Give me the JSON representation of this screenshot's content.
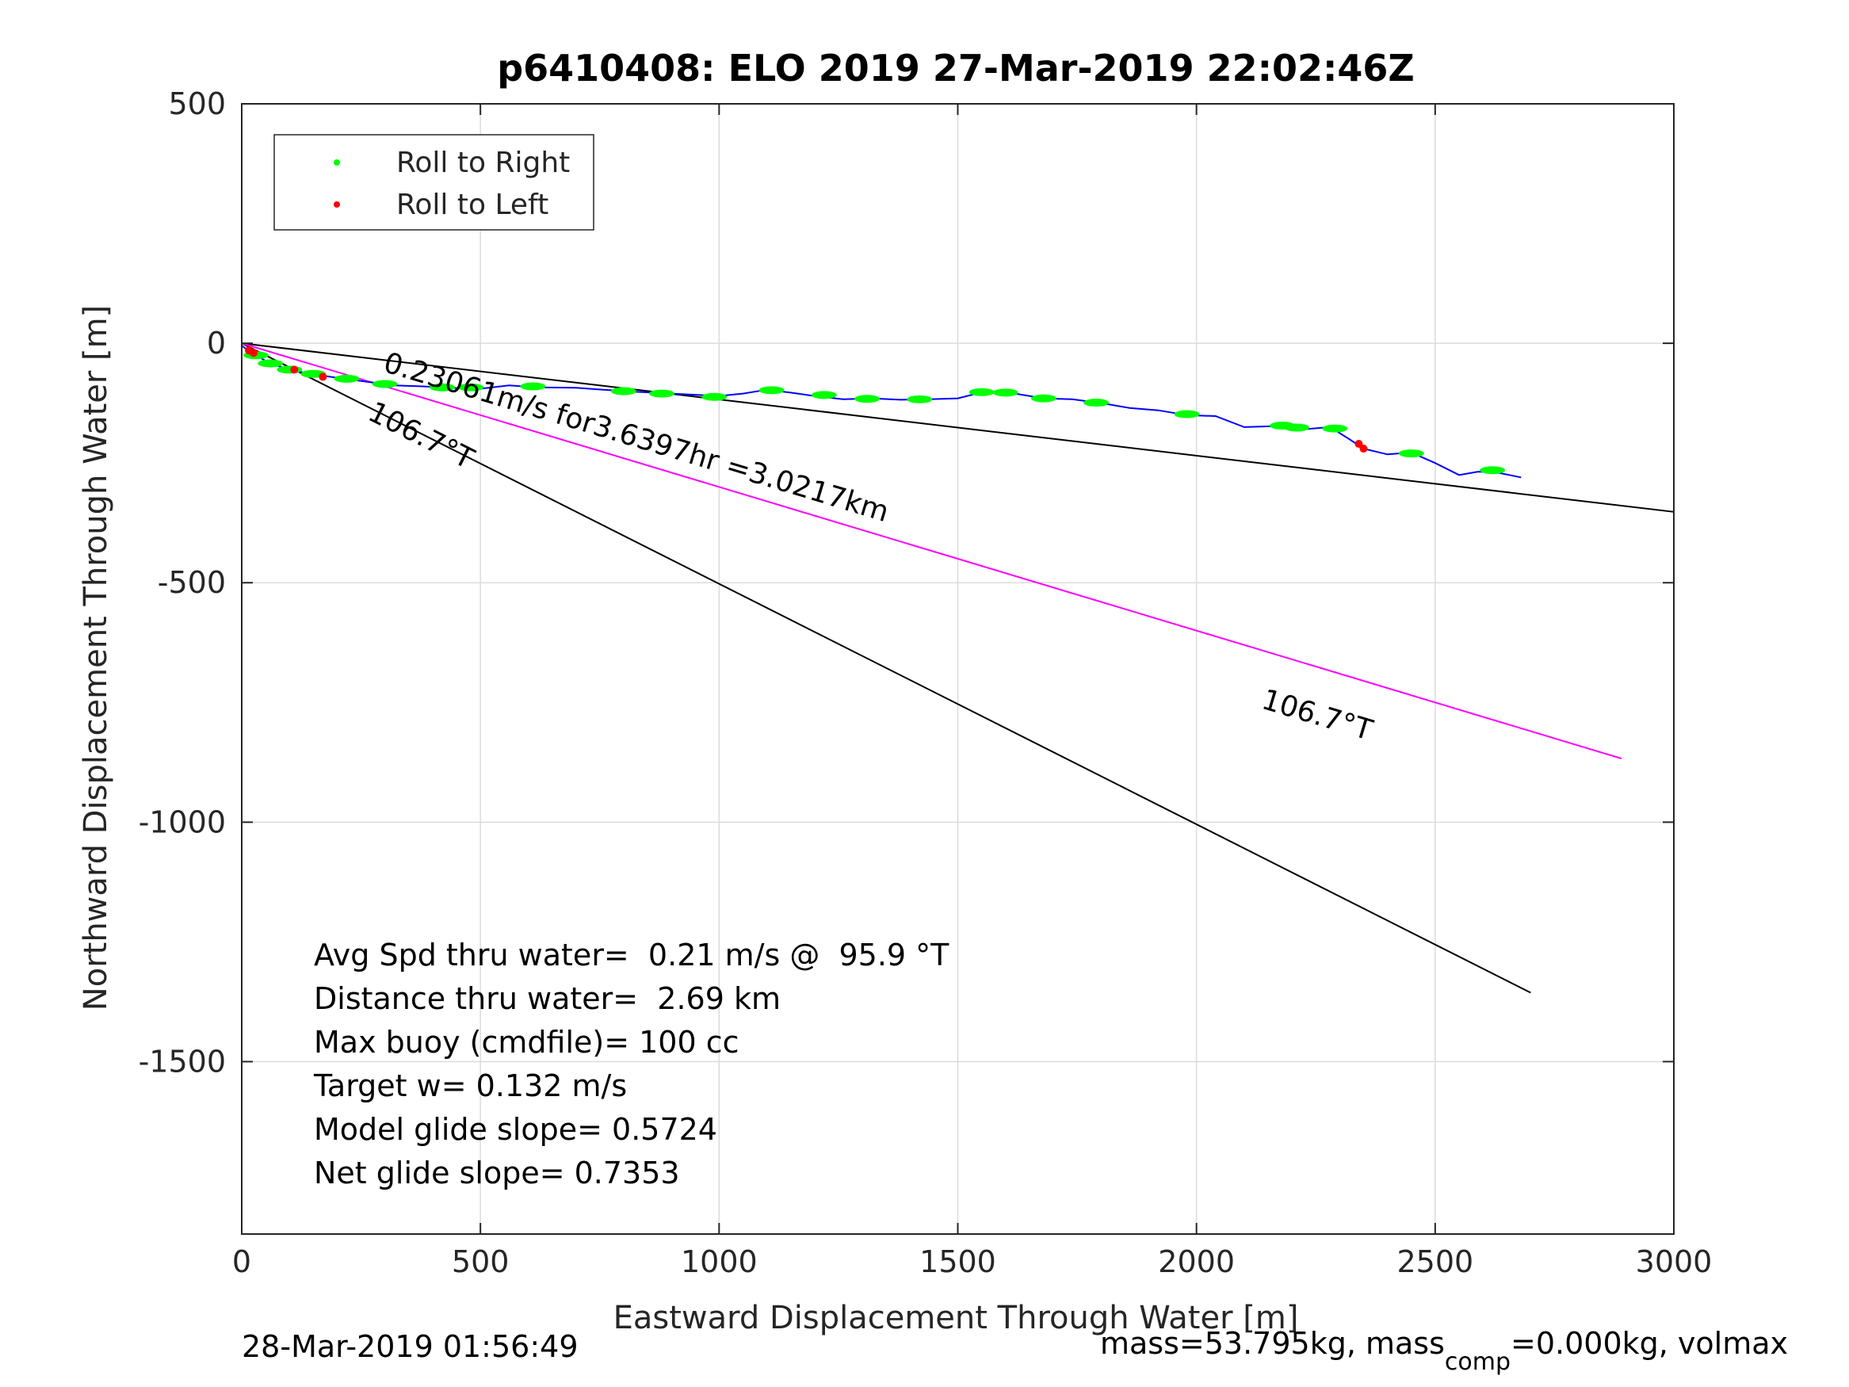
{
  "chart_data": {
    "type": "line",
    "title": "p6410408: ELO 2019 27-Mar-2019 22:02:46Z",
    "xlabel": "Eastward Displacement Through Water [m]",
    "ylabel": "Northward Displacement Through Water [m]",
    "xlim": [
      0,
      3000
    ],
    "ylim": [
      -1860,
      500
    ],
    "xticks": [
      0,
      500,
      1000,
      1500,
      2000,
      2500,
      3000
    ],
    "yticks": [
      500,
      0,
      -500,
      -1000,
      -1500
    ],
    "grid": true,
    "legend_position": "top-left",
    "legend": [
      {
        "label": "Roll to Right",
        "color": "#00ff00"
      },
      {
        "label": "Roll to Left",
        "color": "#ff0000"
      }
    ],
    "track": {
      "color": "#0000ff",
      "x": [
        0,
        20,
        60,
        100,
        150,
        200,
        260,
        320,
        380,
        430,
        500,
        560,
        620,
        700,
        800,
        900,
        1000,
        1050,
        1100,
        1150,
        1200,
        1260,
        1320,
        1380,
        1440,
        1500,
        1560,
        1620,
        1680,
        1740,
        1800,
        1860,
        1920,
        1980,
        2040,
        2100,
        2160,
        2220,
        2280,
        2320,
        2350,
        2400,
        2450,
        2500,
        2550,
        2590,
        2630,
        2680
      ],
      "y": [
        -5,
        -20,
        -42,
        -55,
        -65,
        -72,
        -80,
        -88,
        -90,
        -93,
        -95,
        -88,
        -92,
        -93,
        -100,
        -105,
        -110,
        -105,
        -97,
        -103,
        -110,
        -117,
        -115,
        -118,
        -117,
        -115,
        -100,
        -105,
        -115,
        -117,
        -125,
        -135,
        -140,
        -150,
        -152,
        -175,
        -173,
        -180,
        -175,
        -200,
        -220,
        -232,
        -228,
        -250,
        -275,
        -268,
        -270,
        -280
      ]
    },
    "roll_right_x": [
      30,
      60,
      100,
      150,
      220,
      300,
      420,
      480,
      610,
      800,
      880,
      990,
      1110,
      1220,
      1310,
      1420,
      1550,
      1600,
      1680,
      1790,
      1980,
      2180,
      2210,
      2290,
      2450,
      2620
    ],
    "roll_right_y": [
      -25,
      -42,
      -55,
      -64,
      -74,
      -85,
      -92,
      -92,
      -90,
      -100,
      -105,
      -112,
      -98,
      -108,
      -116,
      -117,
      -102,
      -103,
      -115,
      -124,
      -148,
      -172,
      -176,
      -178,
      -230,
      -265
    ],
    "roll_left_x": [
      15,
      25,
      110,
      170,
      2340,
      2350
    ],
    "roll_left_y": [
      -15,
      -20,
      -55,
      -70,
      -210,
      -220
    ],
    "lines": [
      {
        "name": "upper",
        "color": "#000000",
        "x": [
          0,
          3000
        ],
        "y": [
          0,
          -352
        ]
      },
      {
        "name": "lower",
        "color": "#000000",
        "x": [
          0,
          2700
        ],
        "y": [
          0,
          -1356
        ]
      },
      {
        "name": "mid",
        "color": "#ff00ff",
        "x": [
          0,
          2890
        ],
        "y": [
          0,
          -867
        ]
      }
    ],
    "annotations": {
      "speed_label": "0.23061m/s for3.6397hr =3.0217km",
      "heading_label_1": "106.7°T",
      "heading_label_2": "106.7°T"
    },
    "stats": [
      "Avg Spd thru water=  0.21 m/s @  95.9 °T",
      "Distance thru water=  2.69 km",
      "Max buoy (cmdfile)= 100 cc",
      "Target w= 0.132 m/s",
      "Model glide slope= 0.5724",
      "Net glide slope= 0.7353"
    ]
  },
  "footer": {
    "timestamp": "28-Mar-2019 01:56:49",
    "mass_prefix": "mass=53.795kg, mass",
    "mass_sub": "comp",
    "mass_suffix": "=0.000kg, volmax"
  }
}
